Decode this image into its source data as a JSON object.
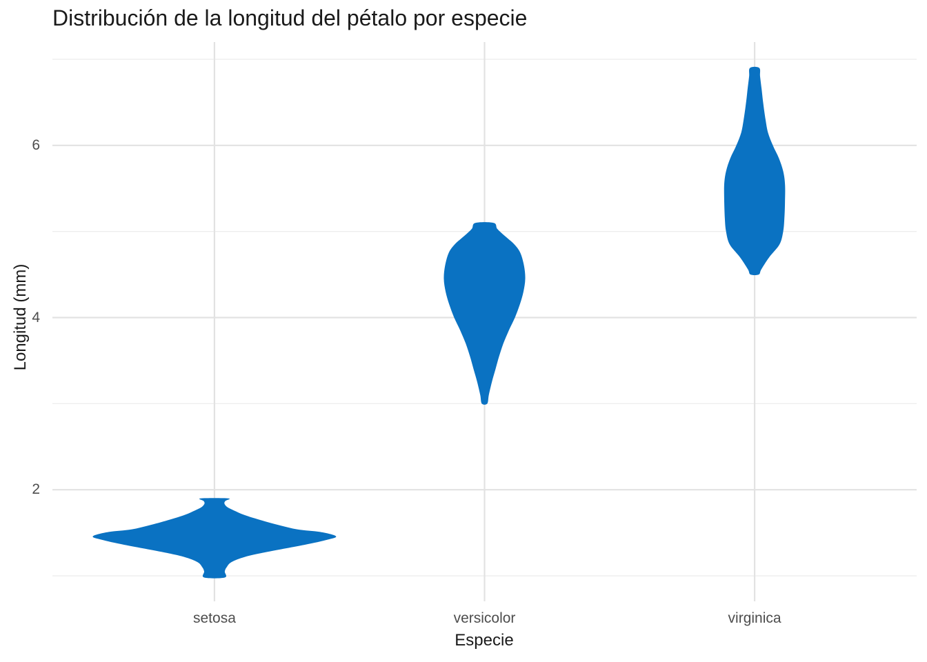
{
  "title": "Distribución de la longitud del pétalo por especie",
  "chart_data": {
    "type": "violin",
    "title": "Distribución de la longitud del pétalo por especie",
    "xlabel": "Especie",
    "ylabel": "Longitud (mm)",
    "categories": [
      "setosa",
      "versicolor",
      "virginica"
    ],
    "y_ticks": [
      2,
      4,
      6
    ],
    "y_minor_ticks": [
      1,
      3,
      5,
      7
    ],
    "ylim": [
      0.704,
      7.2
    ],
    "grid": "major-and-minor",
    "legend": "none",
    "style": {
      "violin_fill": "#0a72c2",
      "background": "#ffffff",
      "major_grid_color": "#e2e2e2",
      "minor_grid_color": "#eeeeee",
      "tick_label_color": "#4d4d4d",
      "text_color": "#1a1a1a"
    },
    "series": [
      {
        "name": "setosa",
        "min": 1.0,
        "max": 1.9,
        "mode": 1.46,
        "max_halfwidth_fraction": 1.0,
        "profile": [
          [
            0.98,
            0.085
          ],
          [
            1.05,
            0.085
          ],
          [
            1.1,
            0.1
          ],
          [
            1.16,
            0.14
          ],
          [
            1.22,
            0.25
          ],
          [
            1.28,
            0.44
          ],
          [
            1.36,
            0.74
          ],
          [
            1.42,
            0.93
          ],
          [
            1.46,
            1.0
          ],
          [
            1.51,
            0.87
          ],
          [
            1.54,
            0.68
          ],
          [
            1.6,
            0.5
          ],
          [
            1.66,
            0.35
          ],
          [
            1.71,
            0.24
          ],
          [
            1.76,
            0.16
          ],
          [
            1.8,
            0.105
          ],
          [
            1.84,
            0.082
          ],
          [
            1.87,
            0.09
          ],
          [
            1.9,
            0.114
          ]
        ]
      },
      {
        "name": "versicolor",
        "min": 3.0,
        "max": 5.1,
        "mode": 4.45,
        "max_halfwidth_fraction": 0.335,
        "profile": [
          [
            3.0,
            0.022
          ],
          [
            3.1,
            0.035
          ],
          [
            3.25,
            0.06
          ],
          [
            3.4,
            0.09
          ],
          [
            3.55,
            0.12
          ],
          [
            3.7,
            0.155
          ],
          [
            3.85,
            0.2
          ],
          [
            4.0,
            0.25
          ],
          [
            4.15,
            0.29
          ],
          [
            4.3,
            0.32
          ],
          [
            4.45,
            0.335
          ],
          [
            4.6,
            0.325
          ],
          [
            4.75,
            0.295
          ],
          [
            4.85,
            0.245
          ],
          [
            4.95,
            0.165
          ],
          [
            5.03,
            0.105
          ],
          [
            5.1,
            0.075
          ]
        ]
      },
      {
        "name": "virginica",
        "min": 4.5,
        "max": 6.9,
        "mode": 5.55,
        "max_halfwidth_fraction": 0.25,
        "profile": [
          [
            4.5,
            0.034
          ],
          [
            4.56,
            0.055
          ],
          [
            4.7,
            0.12
          ],
          [
            4.85,
            0.205
          ],
          [
            5.0,
            0.235
          ],
          [
            5.15,
            0.245
          ],
          [
            5.35,
            0.25
          ],
          [
            5.55,
            0.25
          ],
          [
            5.7,
            0.235
          ],
          [
            5.85,
            0.2
          ],
          [
            6.0,
            0.15
          ],
          [
            6.15,
            0.11
          ],
          [
            6.3,
            0.09
          ],
          [
            6.5,
            0.07
          ],
          [
            6.65,
            0.058
          ],
          [
            6.8,
            0.045
          ],
          [
            6.9,
            0.038
          ]
        ]
      }
    ]
  }
}
